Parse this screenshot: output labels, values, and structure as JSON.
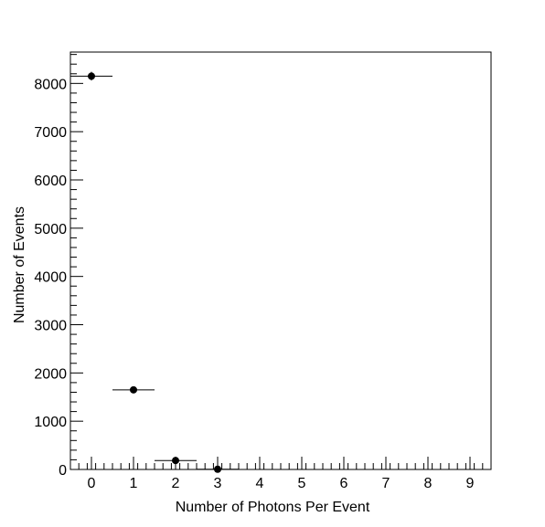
{
  "chart_data": {
    "type": "scatter",
    "title": "",
    "xlabel": "Number of Photons Per Event",
    "ylabel": "Number of Events",
    "xlim": [
      -0.5,
      9.5
    ],
    "ylim": [
      0,
      8650
    ],
    "x_ticks": [
      0,
      1,
      2,
      3,
      4,
      5,
      6,
      7,
      8,
      9
    ],
    "x_tick_labels": [
      "0",
      "1",
      "2",
      "3",
      "4",
      "5",
      "6",
      "7",
      "8",
      "9"
    ],
    "y_ticks": [
      0,
      1000,
      2000,
      3000,
      4000,
      5000,
      6000,
      7000,
      8000
    ],
    "y_tick_labels": [
      "0",
      "1000",
      "2000",
      "3000",
      "4000",
      "5000",
      "6000",
      "7000",
      "8000"
    ],
    "grid": false,
    "legend": "none",
    "marker_color": "#000000",
    "series": [
      {
        "points": [
          {
            "x": 0,
            "y": 8150,
            "xerr": 0.5,
            "yerr": 90
          },
          {
            "x": 1,
            "y": 1650,
            "xerr": 0.5,
            "yerr": 40
          },
          {
            "x": 2,
            "y": 185,
            "xerr": 0.5,
            "yerr": 14
          },
          {
            "x": 3,
            "y": 5,
            "xerr": 0.5,
            "yerr": 2
          }
        ]
      }
    ]
  }
}
